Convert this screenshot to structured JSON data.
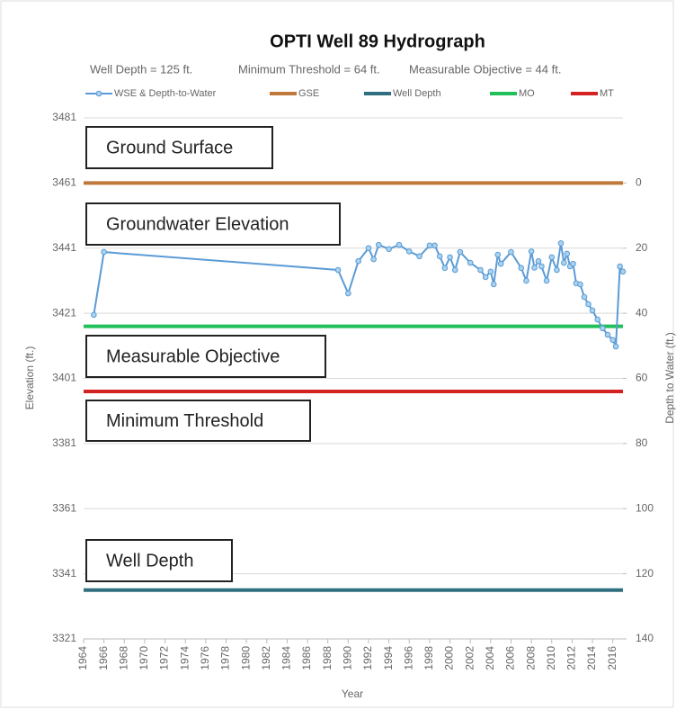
{
  "chart_data": {
    "type": "line",
    "title": "OPTI Well 89 Hydrograph",
    "subtitles": [
      "Well Depth = 125 ft.",
      "Minimum Threshold = 64 ft.",
      "Measurable Objective = 44 ft."
    ],
    "xlabel": "Year",
    "ylabel": "Elevation (ft.)",
    "y2label": "Depth to Water (ft.)",
    "xlim": [
      1964,
      2017
    ],
    "xticks": [
      1964,
      1966,
      1968,
      1970,
      1972,
      1974,
      1976,
      1978,
      1980,
      1982,
      1984,
      1986,
      1988,
      1990,
      1992,
      1994,
      1996,
      1998,
      2000,
      2002,
      2004,
      2006,
      2008,
      2010,
      2012,
      2014,
      2016
    ],
    "ylim": [
      3321,
      3481
    ],
    "yticks": [
      3321,
      3341,
      3361,
      3381,
      3401,
      3421,
      3441,
      3461,
      3481
    ],
    "y2lim": [
      140,
      -20
    ],
    "y2ticks": [
      0,
      20,
      40,
      60,
      80,
      100,
      120,
      140
    ],
    "grid": true,
    "series": [
      {
        "name": "WSE & Depth-to-Water",
        "color": "#5b9bd5",
        "x": [
          1965,
          1966,
          1989,
          1990,
          1991,
          1992,
          1992.5,
          1993,
          1994,
          1995,
          1996,
          1997,
          1998,
          1998.5,
          1999,
          1999.5,
          2000,
          2000.5,
          2001,
          2002,
          2003,
          2003.5,
          2004,
          2004.3,
          2004.7,
          2005,
          2006,
          2007,
          2007.5,
          2008,
          2008.3,
          2008.7,
          2009,
          2009.5,
          2010,
          2010.5,
          2010.9,
          2011.2,
          2011.5,
          2011.8,
          2012.1,
          2012.4,
          2012.8,
          2013.2,
          2013.6,
          2014,
          2014.5,
          2015,
          2015.5,
          2016,
          2016.3,
          2016.7,
          2017
        ],
        "values": [
          3420.5,
          3439.8,
          3434.3,
          3427.1,
          3437,
          3441,
          3437.6,
          3442,
          3440.7,
          3442,
          3440,
          3438.5,
          3441.8,
          3441.8,
          3438.5,
          3434.9,
          3438.2,
          3434.3,
          3439.8,
          3436.5,
          3434.3,
          3432.1,
          3433.8,
          3429.9,
          3439,
          3436.2,
          3439.8,
          3434.9,
          3431,
          3440,
          3435,
          3437,
          3435.4,
          3431,
          3438.2,
          3434.3,
          3442.5,
          3436.5,
          3439.3,
          3435.4,
          3436.2,
          3430.2,
          3429.9,
          3426,
          3423.8,
          3421.9,
          3419.1,
          3416.4,
          3414.4,
          3412.8,
          3410.8,
          3435.4,
          3433.8
        ]
      }
    ],
    "reference_lines": [
      {
        "name": "GSE",
        "color": "#c0773a",
        "value": 3461
      },
      {
        "name": "Well Depth",
        "color": "#2f6f7f",
        "value": 3336
      },
      {
        "name": "MO",
        "color": "#22c05a",
        "value": 3417
      },
      {
        "name": "MT",
        "color": "#d42222",
        "value": 3397
      }
    ],
    "annotations": [
      "Ground Surface",
      "Groundwater Elevation",
      "Measurable Objective",
      "Minimum Threshold",
      "Well Depth"
    ]
  }
}
